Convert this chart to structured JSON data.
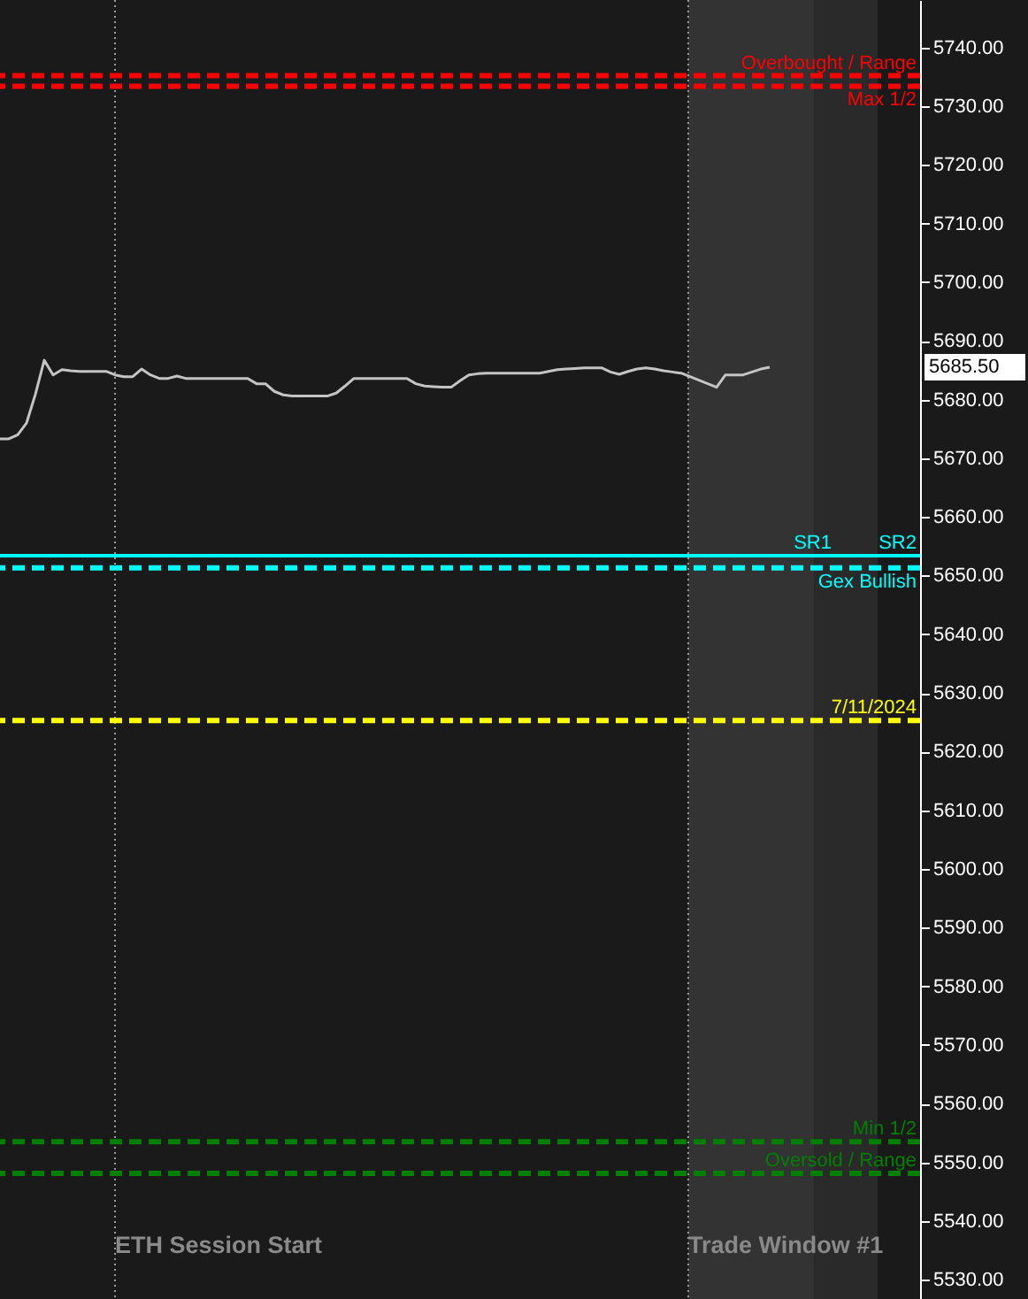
{
  "chart_data": {
    "type": "line",
    "categories": [
      null,
      null,
      null,
      null,
      null,
      null,
      null,
      null,
      null,
      null,
      null,
      null,
      null,
      null,
      null,
      null,
      null,
      null,
      null,
      null,
      null,
      null,
      null,
      null,
      null,
      null,
      null,
      null,
      null,
      null,
      null,
      null,
      null,
      null,
      null,
      null,
      null,
      null,
      null,
      null,
      null,
      null,
      null,
      null,
      null,
      null,
      null,
      null,
      null,
      null,
      null,
      null,
      null,
      null,
      null,
      null,
      null,
      null,
      null,
      null,
      null,
      null,
      null,
      null,
      null,
      null,
      null,
      null,
      null,
      null,
      null,
      null,
      null,
      null,
      null,
      null,
      null,
      null,
      null,
      null,
      null,
      null,
      null,
      null,
      null,
      null,
      null,
      null,
      null,
      null,
      null,
      null,
      null,
      null,
      null,
      null,
      null,
      null,
      null,
      null,
      null,
      null,
      null,
      null
    ],
    "series": [
      {
        "color": "#c4c4c4",
        "values": [
          5673.3,
          5673.3,
          5674.0,
          5676.0,
          5680.9,
          5686.7,
          5684.2,
          5685.1,
          5684.9,
          5684.8,
          5684.8,
          5684.8,
          5684.8,
          5684.2,
          5683.9,
          5683.9,
          5685.2,
          5684.2,
          5683.6,
          5683.6,
          5684.0,
          5683.6,
          5683.6,
          5683.6,
          5683.6,
          5683.6,
          5683.6,
          5683.6,
          5683.6,
          5682.7,
          5682.7,
          5681.4,
          5680.8,
          5680.6,
          5680.6,
          5680.6,
          5680.6,
          5680.6,
          5681.1,
          5682.3,
          5683.6,
          5683.6,
          5683.6,
          5683.6,
          5683.6,
          5683.6,
          5683.6,
          5682.7,
          5682.3,
          5682.2,
          5682.1,
          5682.1,
          5683.2,
          5684.2,
          5684.4,
          5684.5,
          5684.5,
          5684.5,
          5684.5,
          5684.5,
          5684.5,
          5684.5,
          5684.8,
          5685.1,
          5685.2,
          5685.3,
          5685.4,
          5685.4,
          5685.4,
          5684.7,
          5684.3,
          5684.8,
          5685.2,
          5685.4,
          5685.2,
          5684.9,
          5684.7,
          5684.5,
          5683.9,
          5683.3,
          5682.7,
          5682.1,
          5684.2,
          5684.2,
          5684.2,
          5684.7,
          5685.2,
          5685.5,
          null,
          null,
          null,
          null,
          null,
          null,
          null,
          null,
          null,
          null,
          null,
          null,
          null,
          null,
          null,
          null
        ]
      }
    ],
    "ylim": [
      5526.7,
      5748.1
    ],
    "yticks": [
      {
        "value": 5530,
        "label": "5530.00"
      },
      {
        "value": 5540,
        "label": "5540.00"
      },
      {
        "value": 5550,
        "label": "5550.00"
      },
      {
        "value": 5560,
        "label": "5560.00"
      },
      {
        "value": 5570,
        "label": "5570.00"
      },
      {
        "value": 5580,
        "label": "5580.00"
      },
      {
        "value": 5590,
        "label": "5590.00"
      },
      {
        "value": 5600,
        "label": "5600.00"
      },
      {
        "value": 5610,
        "label": "5610.00"
      },
      {
        "value": 5620,
        "label": "5620.00"
      },
      {
        "value": 5630,
        "label": "5630.00"
      },
      {
        "value": 5640,
        "label": "5640.00"
      },
      {
        "value": 5650,
        "label": "5650.00"
      },
      {
        "value": 5660,
        "label": "5660.00"
      },
      {
        "value": 5670,
        "label": "5670.00"
      },
      {
        "value": 5680,
        "label": "5680.00"
      },
      {
        "value": 5690,
        "label": "5690.00"
      },
      {
        "value": 5700,
        "label": "5700.00"
      },
      {
        "value": 5710,
        "label": "5710.00"
      },
      {
        "value": 5720,
        "label": "5720.00"
      },
      {
        "value": 5730,
        "label": "5730.00"
      },
      {
        "value": 5740,
        "label": "5740.00"
      }
    ],
    "tick_labels": "y",
    "grid": false,
    "ref_lines": [
      {
        "axis": "y",
        "value": 5733.4,
        "label": "Max 1/2",
        "color": "#ff0000",
        "line_style": "dashed"
      },
      {
        "axis": "y",
        "value": 5735.2,
        "label": "Overbought / Range",
        "color": "#ff0000",
        "line_style": "dashed"
      },
      {
        "axis": "y",
        "value": 5653.4,
        "label": "SR2",
        "color": "#00ffff",
        "line_style": "solid"
      },
      {
        "axis": "y",
        "value": 5651.3,
        "label": "Gex Bullish",
        "color": "#00ffff",
        "line_style": "dashed"
      },
      {
        "axis": "y",
        "value": 5625.3,
        "color": "#ffff00",
        "line_style": "dashed"
      },
      {
        "axis": "y",
        "value": 5553.5,
        "label": "Min 1/2",
        "color": "#008000",
        "line_style": "dashed"
      },
      {
        "axis": "y",
        "value": 5548.1,
        "label": "Oversold / Range",
        "color": "#008000",
        "line_style": "dashed"
      }
    ],
    "annotations": [
      "5685.50",
      "ETH Session Start",
      "Trade Window #1",
      {
        "text": "SR1",
        "y": 5653.4
      },
      {
        "text": "7/11/2024",
        "y": 5625.3
      }
    ]
  }
}
